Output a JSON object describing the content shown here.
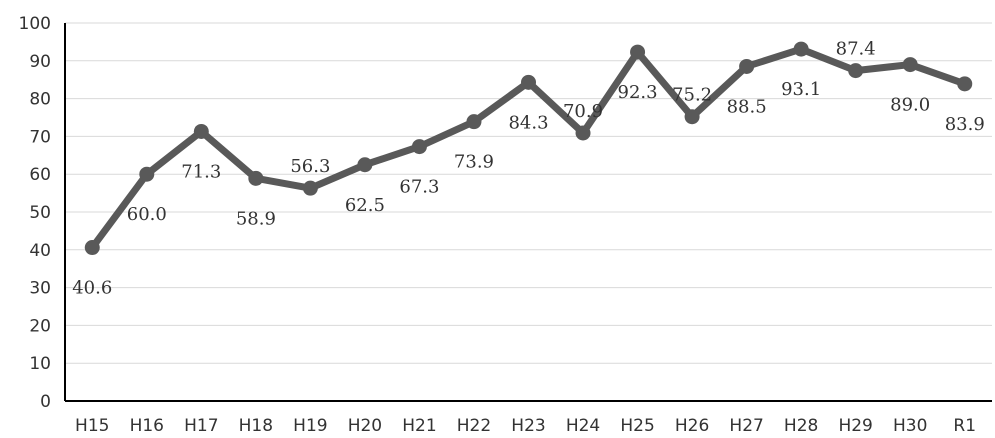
{
  "chart_data": {
    "type": "line",
    "categories": [
      "H15",
      "H16",
      "H17",
      "H18",
      "H19",
      "H20",
      "H21",
      "H22",
      "H23",
      "H24",
      "H25",
      "H26",
      "H27",
      "H28",
      "H29",
      "H30",
      "R1"
    ],
    "series": [
      {
        "values": [
          40.6,
          60.0,
          71.3,
          58.9,
          56.3,
          62.5,
          67.3,
          73.9,
          84.3,
          70.9,
          92.3,
          75.2,
          88.5,
          93.1,
          87.4,
          89.0,
          83.9
        ]
      }
    ],
    "data_labels": [
      "40.6",
      "60.0",
      "71.3",
      "58.9",
      "56.3",
      "62.5",
      "67.3",
      "73.9",
      "84.3",
      "70.9",
      "92.3",
      "75.2",
      "88.5",
      "93.1",
      "87.4",
      "89.0",
      "83.9"
    ],
    "yticks": [
      "0",
      "10",
      "20",
      "30",
      "40",
      "50",
      "60",
      "70",
      "80",
      "90",
      "100"
    ],
    "ylim": [
      0,
      100
    ],
    "title": "",
    "xlabel": "",
    "ylabel": "",
    "grid": true,
    "legend": "none",
    "line_color": "#595959"
  }
}
